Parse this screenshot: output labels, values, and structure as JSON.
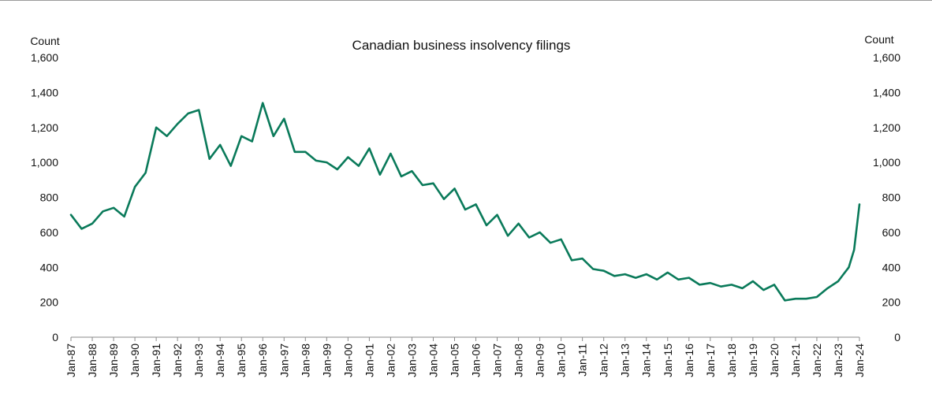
{
  "chart_data": {
    "type": "line",
    "title": "Canadian business insolvency filings",
    "ylabel_left": "Count",
    "ylabel_right": "Count",
    "ylim": [
      0,
      1600
    ],
    "yticks": [
      "0",
      "200",
      "400",
      "600",
      "800",
      "1,000",
      "1,200",
      "1,400",
      "1,600"
    ],
    "xticks": [
      "Jan-87",
      "Jan-88",
      "Jan-89",
      "Jan-90",
      "Jan-91",
      "Jan-92",
      "Jan-93",
      "Jan-94",
      "Jan-95",
      "Jan-96",
      "Jan-97",
      "Jan-98",
      "Jan-99",
      "Jan-00",
      "Jan-01",
      "Jan-02",
      "Jan-03",
      "Jan-04",
      "Jan-05",
      "Jan-06",
      "Jan-07",
      "Jan-08",
      "Jan-09",
      "Jan-10",
      "Jan-11",
      "Jan-12",
      "Jan-13",
      "Jan-14",
      "Jan-15",
      "Jan-16",
      "Jan-17",
      "Jan-18",
      "Jan-19",
      "Jan-20",
      "Jan-21",
      "Jan-22",
      "Jan-23",
      "Jan-24"
    ],
    "grid": false,
    "legend": "none",
    "line_color": "#0a7a5a",
    "series": [
      {
        "x": [
          "Jan-87",
          "Jul-87",
          "Jan-88",
          "Jul-88",
          "Jan-89",
          "Jul-89",
          "Jan-90",
          "Jul-90",
          "Jan-91",
          "Jul-91",
          "Jan-92",
          "Jul-92",
          "Jan-93",
          "Jul-93",
          "Jan-94",
          "Jul-94",
          "Jan-95",
          "Jul-95",
          "Jan-96",
          "Jul-96",
          "Jan-97",
          "Jul-97",
          "Jan-98",
          "Jul-98",
          "Jan-99",
          "Jul-99",
          "Jan-00",
          "Jul-00",
          "Jan-01",
          "Jul-01",
          "Jan-02",
          "Jul-02",
          "Jan-03",
          "Jul-03",
          "Jan-04",
          "Jul-04",
          "Jan-05",
          "Jul-05",
          "Jan-06",
          "Jul-06",
          "Jan-07",
          "Jul-07",
          "Jan-08",
          "Jul-08",
          "Jan-09",
          "Jul-09",
          "Jan-10",
          "Jul-10",
          "Jan-11",
          "Jul-11",
          "Jan-12",
          "Jul-12",
          "Jan-13",
          "Jul-13",
          "Jan-14",
          "Jul-14",
          "Jan-15",
          "Jul-15",
          "Jan-16",
          "Jul-16",
          "Jan-17",
          "Jul-17",
          "Jan-18",
          "Jul-18",
          "Jan-19",
          "Jul-19",
          "Jan-20",
          "Jul-20",
          "Jan-21",
          "Jul-21",
          "Jan-22",
          "Jul-22",
          "Jan-23",
          "Apr-23",
          "Jul-23",
          "Oct-23",
          "Jan-24"
        ],
        "values": [
          700,
          620,
          650,
          720,
          740,
          690,
          860,
          940,
          1200,
          1150,
          1220,
          1280,
          1300,
          1020,
          1100,
          980,
          1150,
          1120,
          1340,
          1150,
          1250,
          1060,
          1060,
          1010,
          1000,
          960,
          1030,
          980,
          1080,
          930,
          1050,
          920,
          950,
          870,
          880,
          790,
          850,
          730,
          760,
          640,
          700,
          580,
          650,
          570,
          600,
          540,
          560,
          440,
          450,
          390,
          380,
          350,
          360,
          340,
          360,
          330,
          370,
          330,
          340,
          300,
          310,
          290,
          300,
          280,
          320,
          270,
          300,
          210,
          220,
          220,
          230,
          280,
          320,
          360,
          400,
          500,
          760
        ]
      }
    ]
  }
}
